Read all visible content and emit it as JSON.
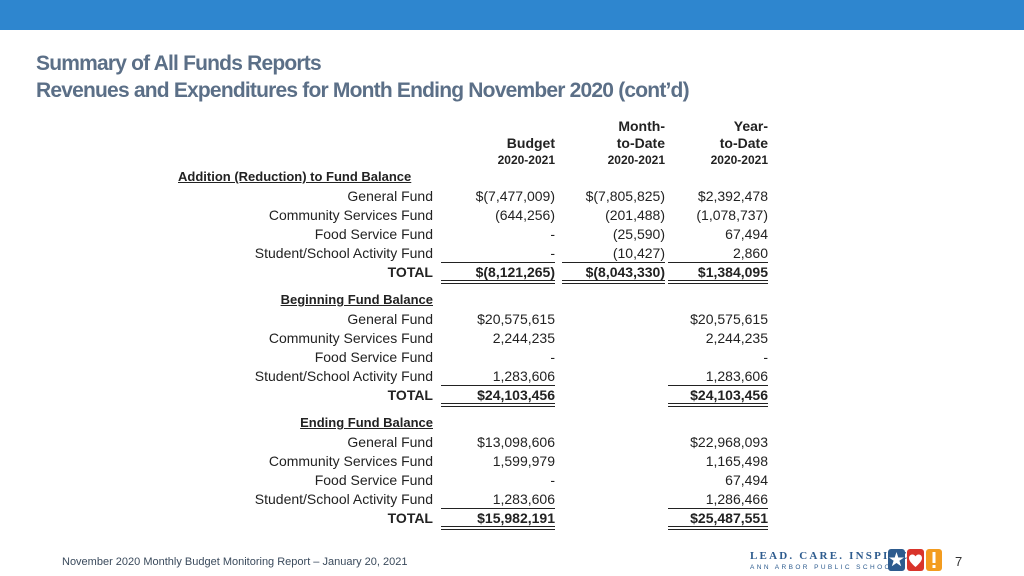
{
  "title": {
    "line1": "Summary of All Funds Reports",
    "line2": "Revenues and Expenditures for Month Ending November 2020 (cont’d)"
  },
  "columns": {
    "budget": {
      "line1": "Budget",
      "line2": "2020-2021"
    },
    "mtd": {
      "line1": "Month-",
      "line2": "to-Date",
      "line3": "2020-2021"
    },
    "ytd": {
      "line1": "Year-",
      "line2": "to-Date",
      "line3": "2020-2021"
    }
  },
  "sections": [
    {
      "title": "Addition (Reduction) to Fund Balance",
      "rows": [
        {
          "label": "General Fund",
          "budget": "$(7,477,009)",
          "mtd": "$(7,805,825)",
          "ytd": "$2,392,478"
        },
        {
          "label": "Community Services Fund",
          "budget": "(644,256)",
          "mtd": "(201,488)",
          "ytd": "(1,078,737)"
        },
        {
          "label": "Food Service Fund",
          "budget": "-",
          "mtd": "(25,590)",
          "ytd": "67,494"
        },
        {
          "label": "Student/School Activity Fund",
          "budget": "-",
          "mtd": "(10,427)",
          "ytd": "2,860"
        }
      ],
      "total": {
        "label": "TOTAL",
        "budget": "$(8,121,265)",
        "mtd": "$(8,043,330)",
        "ytd": "$1,384,095"
      }
    },
    {
      "title": "Beginning Fund Balance",
      "rows": [
        {
          "label": "General Fund",
          "budget": "$20,575,615",
          "mtd": "",
          "ytd": "$20,575,615"
        },
        {
          "label": "Community Services Fund",
          "budget": "2,244,235",
          "mtd": "",
          "ytd": "2,244,235"
        },
        {
          "label": "Food Service Fund",
          "budget": "-",
          "mtd": "",
          "ytd": "-"
        },
        {
          "label": "Student/School Activity Fund",
          "budget": "1,283,606",
          "mtd": "",
          "ytd": "1,283,606"
        }
      ],
      "total": {
        "label": "TOTAL",
        "budget": "$24,103,456",
        "mtd": "",
        "ytd": "$24,103,456"
      }
    },
    {
      "title": "Ending Fund Balance",
      "rows": [
        {
          "label": "General Fund",
          "budget": "$13,098,606",
          "mtd": "",
          "ytd": "$22,968,093"
        },
        {
          "label": "Community Services Fund",
          "budget": "1,599,979",
          "mtd": "",
          "ytd": "1,165,498"
        },
        {
          "label": "Food Service Fund",
          "budget": "-",
          "mtd": "",
          "ytd": "67,494"
        },
        {
          "label": "Student/School Activity Fund",
          "budget": "1,283,606",
          "mtd": "",
          "ytd": "1,286,466"
        }
      ],
      "total": {
        "label": "TOTAL",
        "budget": "$15,982,191",
        "mtd": "",
        "ytd": "$25,487,551"
      }
    }
  ],
  "footer": {
    "text": "November 2020 Monthly Budget Monitoring Report – January 20, 2021",
    "page_number": "7",
    "logo_tagline": "LEAD. CARE. INSPIRE.",
    "logo_org": "ANN ARBOR PUBLIC SCHOOLS",
    "logo_icons": [
      "star-icon",
      "heart-icon",
      "exclamation-icon"
    ]
  },
  "colors": {
    "top_bar": "#2e86cf",
    "title": "#5b6f87",
    "logo_blue": "#2d5b8e",
    "logo_red": "#d9342b",
    "logo_orange": "#f39c1f"
  }
}
